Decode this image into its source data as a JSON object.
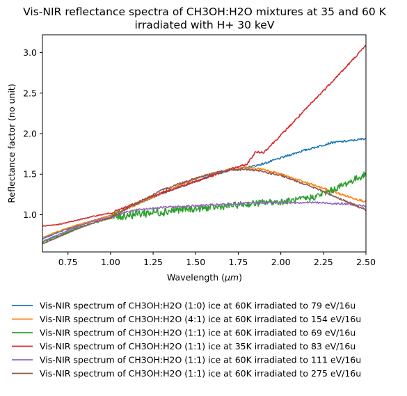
{
  "chart_data": {
    "type": "line",
    "title_line1": "Vis-NIR reflectance spectra of CH3OH:H2O mixtures at 35 and 60 K",
    "title_line2": "irradiated with H+ 30 keV",
    "xlabel_text": "Wavelength (",
    "xlabel_unit": "μm",
    "xlabel_close": ")",
    "ylabel": "Reflectance factor (no unit)",
    "xlim": [
      0.6,
      2.5
    ],
    "ylim": [
      0.54,
      3.22
    ],
    "xticks": [
      0.75,
      1.0,
      1.25,
      1.5,
      1.75,
      2.0,
      2.25,
      2.5
    ],
    "xtick_labels": [
      "0.75",
      "1.00",
      "1.25",
      "1.50",
      "1.75",
      "2.00",
      "2.25",
      "2.50"
    ],
    "yticks": [
      1.0,
      1.5,
      2.0,
      2.5,
      3.0
    ],
    "ytick_labels": [
      "1.0",
      "1.5",
      "2.0",
      "2.5",
      "3.0"
    ],
    "legend_position": "below",
    "series": [
      {
        "name": "Vis-NIR spectrum of CH3OH:H2O (1:0) ice at 60K irradiated to 79 eV/16u",
        "color": "#1f77b4",
        "x": [
          0.6,
          0.7,
          0.8,
          0.9,
          1.0,
          1.1,
          1.2,
          1.3,
          1.4,
          1.5,
          1.6,
          1.7,
          1.8,
          1.9,
          2.0,
          2.1,
          2.2,
          2.3,
          2.4,
          2.5
        ],
        "y": [
          0.7,
          0.79,
          0.86,
          0.93,
          0.99,
          1.08,
          1.17,
          1.26,
          1.34,
          1.41,
          1.49,
          1.55,
          1.58,
          1.63,
          1.7,
          1.77,
          1.83,
          1.89,
          1.91,
          1.94
        ]
      },
      {
        "name": "Vis-NIR spectrum of CH3OH:H2O (4:1) ice at 60K irradiated to 154 eV/16u",
        "color": "#ff7f0e",
        "x": [
          0.6,
          0.7,
          0.8,
          0.9,
          1.0,
          1.1,
          1.2,
          1.3,
          1.4,
          1.5,
          1.6,
          1.7,
          1.8,
          1.9,
          2.0,
          2.1,
          2.2,
          2.3,
          2.4,
          2.5
        ],
        "y": [
          0.72,
          0.8,
          0.87,
          0.93,
          0.99,
          1.08,
          1.17,
          1.27,
          1.36,
          1.44,
          1.51,
          1.56,
          1.58,
          1.56,
          1.5,
          1.43,
          1.36,
          1.29,
          1.22,
          1.16
        ]
      },
      {
        "name": "Vis-NIR spectrum of CH3OH:H2O (1:1) ice at 60K irradiated to 69 eV/16u",
        "color": "#2ca02c",
        "noise": 0.045,
        "x": [
          0.6,
          0.7,
          0.8,
          0.9,
          1.0,
          1.1,
          1.2,
          1.3,
          1.4,
          1.5,
          1.6,
          1.7,
          1.8,
          1.9,
          2.0,
          2.1,
          2.2,
          2.3,
          2.4,
          2.5
        ],
        "y": [
          0.66,
          0.74,
          0.83,
          0.9,
          0.96,
          1.0,
          1.02,
          1.04,
          1.06,
          1.07,
          1.09,
          1.11,
          1.13,
          1.15,
          1.16,
          1.18,
          1.22,
          1.3,
          1.4,
          1.5
        ]
      },
      {
        "name": "Vis-NIR spectrum of CH3OH:H2O (1:1) ice at 35K irradiated to 83 eV/16u",
        "color": "#d62728",
        "x": [
          0.6,
          0.7,
          0.8,
          0.9,
          1.0,
          1.1,
          1.2,
          1.3,
          1.4,
          1.5,
          1.6,
          1.7,
          1.8,
          1.85,
          1.9,
          2.0,
          2.1,
          2.2,
          2.3,
          2.4,
          2.5
        ],
        "y": [
          0.86,
          0.88,
          0.93,
          0.98,
          1.02,
          1.1,
          1.19,
          1.27,
          1.34,
          1.41,
          1.48,
          1.56,
          1.62,
          1.77,
          1.77,
          1.98,
          2.2,
          2.42,
          2.64,
          2.86,
          3.09
        ]
      },
      {
        "name": "Vis-NIR spectrum of CH3OH:H2O (1:1) ice at 60K irradiated to 111 eV/16u",
        "color": "#9467bd",
        "x": [
          0.6,
          0.7,
          0.8,
          0.9,
          1.0,
          1.1,
          1.2,
          1.3,
          1.4,
          1.5,
          1.6,
          1.7,
          1.8,
          1.9,
          2.0,
          2.1,
          2.2,
          2.3,
          2.4,
          2.5
        ],
        "y": [
          0.67,
          0.76,
          0.85,
          0.92,
          0.97,
          1.04,
          1.07,
          1.09,
          1.1,
          1.11,
          1.12,
          1.13,
          1.14,
          1.15,
          1.15,
          1.15,
          1.15,
          1.14,
          1.13,
          1.1
        ]
      },
      {
        "name": "Vis-NIR spectrum of CH3OH:H2O (1:1) ice at 60K irradiated to 275 eV/16u",
        "color": "#8c564b",
        "x": [
          0.6,
          0.7,
          0.8,
          0.9,
          1.0,
          1.1,
          1.2,
          1.3,
          1.4,
          1.5,
          1.6,
          1.7,
          1.8,
          1.9,
          2.0,
          2.1,
          2.2,
          2.3,
          2.4,
          2.5
        ],
        "y": [
          0.64,
          0.73,
          0.82,
          0.9,
          0.96,
          1.08,
          1.19,
          1.3,
          1.38,
          1.45,
          1.51,
          1.55,
          1.56,
          1.53,
          1.48,
          1.41,
          1.33,
          1.24,
          1.15,
          1.06
        ]
      }
    ]
  }
}
